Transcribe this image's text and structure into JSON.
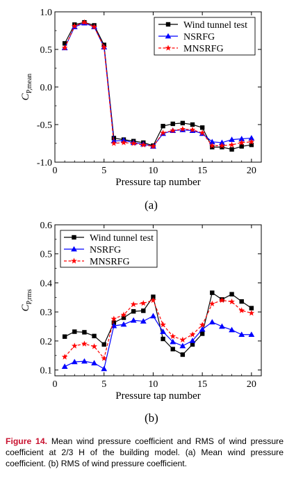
{
  "chart_data": [
    {
      "type": "line",
      "panel": "(a)",
      "title": "",
      "xlabel": "Pressure tap number",
      "ylabel_main": "C",
      "ylabel_sub": "P,mean",
      "xlim": [
        0,
        21
      ],
      "ylim": [
        -1.0,
        1.0
      ],
      "xticks": [
        0,
        5,
        10,
        15,
        20
      ],
      "yticks": [
        -1.0,
        -0.5,
        0.0,
        0.5,
        1.0
      ],
      "ytick_labels": [
        "-1.0",
        "-0.5",
        "0.0",
        "0.5",
        "1.0"
      ],
      "legend_position": "top-right",
      "x": [
        1,
        2,
        3,
        4,
        5,
        6,
        7,
        8,
        9,
        10,
        11,
        12,
        13,
        14,
        15,
        16,
        17,
        18,
        19,
        20
      ],
      "series": [
        {
          "name": "Wind tunnel test",
          "color": "#000000",
          "marker": "square",
          "values": [
            0.58,
            0.83,
            0.86,
            0.82,
            0.56,
            -0.68,
            -0.7,
            -0.72,
            -0.74,
            -0.78,
            -0.52,
            -0.49,
            -0.48,
            -0.5,
            -0.54,
            -0.8,
            -0.8,
            -0.83,
            -0.79,
            -0.77
          ]
        },
        {
          "name": "NSRFG",
          "color": "#0000ff",
          "marker": "triangle",
          "values": [
            0.52,
            0.8,
            0.85,
            0.8,
            0.53,
            -0.72,
            -0.71,
            -0.74,
            -0.76,
            -0.79,
            -0.62,
            -0.58,
            -0.57,
            -0.58,
            -0.62,
            -0.73,
            -0.74,
            -0.7,
            -0.69,
            -0.68
          ]
        },
        {
          "name": "MNSRFG",
          "color": "#ff0000",
          "marker": "star",
          "values": [
            0.52,
            0.81,
            0.86,
            0.8,
            0.53,
            -0.75,
            -0.74,
            -0.75,
            -0.77,
            -0.79,
            -0.61,
            -0.58,
            -0.56,
            -0.57,
            -0.61,
            -0.78,
            -0.78,
            -0.77,
            -0.74,
            -0.73
          ]
        }
      ]
    },
    {
      "type": "line",
      "panel": "(b)",
      "title": "",
      "xlabel": "Pressure tap number",
      "ylabel_main": "C",
      "ylabel_sub": "P,rms",
      "xlim": [
        0,
        21
      ],
      "ylim": [
        0.08,
        0.6
      ],
      "xticks": [
        0,
        5,
        10,
        15,
        20
      ],
      "yticks": [
        0.1,
        0.2,
        0.3,
        0.4,
        0.5,
        0.6
      ],
      "ytick_labels": [
        "0.1",
        "0.2",
        "0.3",
        "0.4",
        "0.5",
        "0.6"
      ],
      "legend_position": "top-left",
      "x": [
        1,
        2,
        3,
        4,
        5,
        6,
        7,
        8,
        9,
        10,
        11,
        12,
        13,
        14,
        15,
        16,
        17,
        18,
        19,
        20
      ],
      "series": [
        {
          "name": "Wind tunnel test",
          "color": "#000000",
          "marker": "square",
          "values": [
            0.215,
            0.232,
            0.23,
            0.217,
            0.188,
            0.263,
            0.28,
            0.302,
            0.304,
            0.352,
            0.207,
            0.172,
            0.153,
            0.188,
            0.225,
            0.366,
            0.343,
            0.361,
            0.336,
            0.313
          ]
        },
        {
          "name": "NSRFG",
          "color": "#0000ff",
          "marker": "triangle",
          "values": [
            0.112,
            0.128,
            0.13,
            0.124,
            0.104,
            0.252,
            0.257,
            0.271,
            0.268,
            0.286,
            0.232,
            0.197,
            0.183,
            0.201,
            0.24,
            0.265,
            0.25,
            0.238,
            0.222,
            0.222
          ]
        },
        {
          "name": "MNSRFG",
          "color": "#ff0000",
          "marker": "star",
          "values": [
            0.145,
            0.183,
            0.19,
            0.181,
            0.14,
            0.276,
            0.29,
            0.326,
            0.33,
            0.34,
            0.256,
            0.216,
            0.204,
            0.222,
            0.255,
            0.328,
            0.34,
            0.335,
            0.305,
            0.296
          ]
        }
      ]
    }
  ],
  "caption": {
    "label": "Figure 14.",
    "text": "Mean wind pressure coefficient and RMS of wind pressure coefficient at 2/3 H of the building model. (a) Mean wind pressure coefficient. (b) RMS of wind pressure coefficient."
  }
}
